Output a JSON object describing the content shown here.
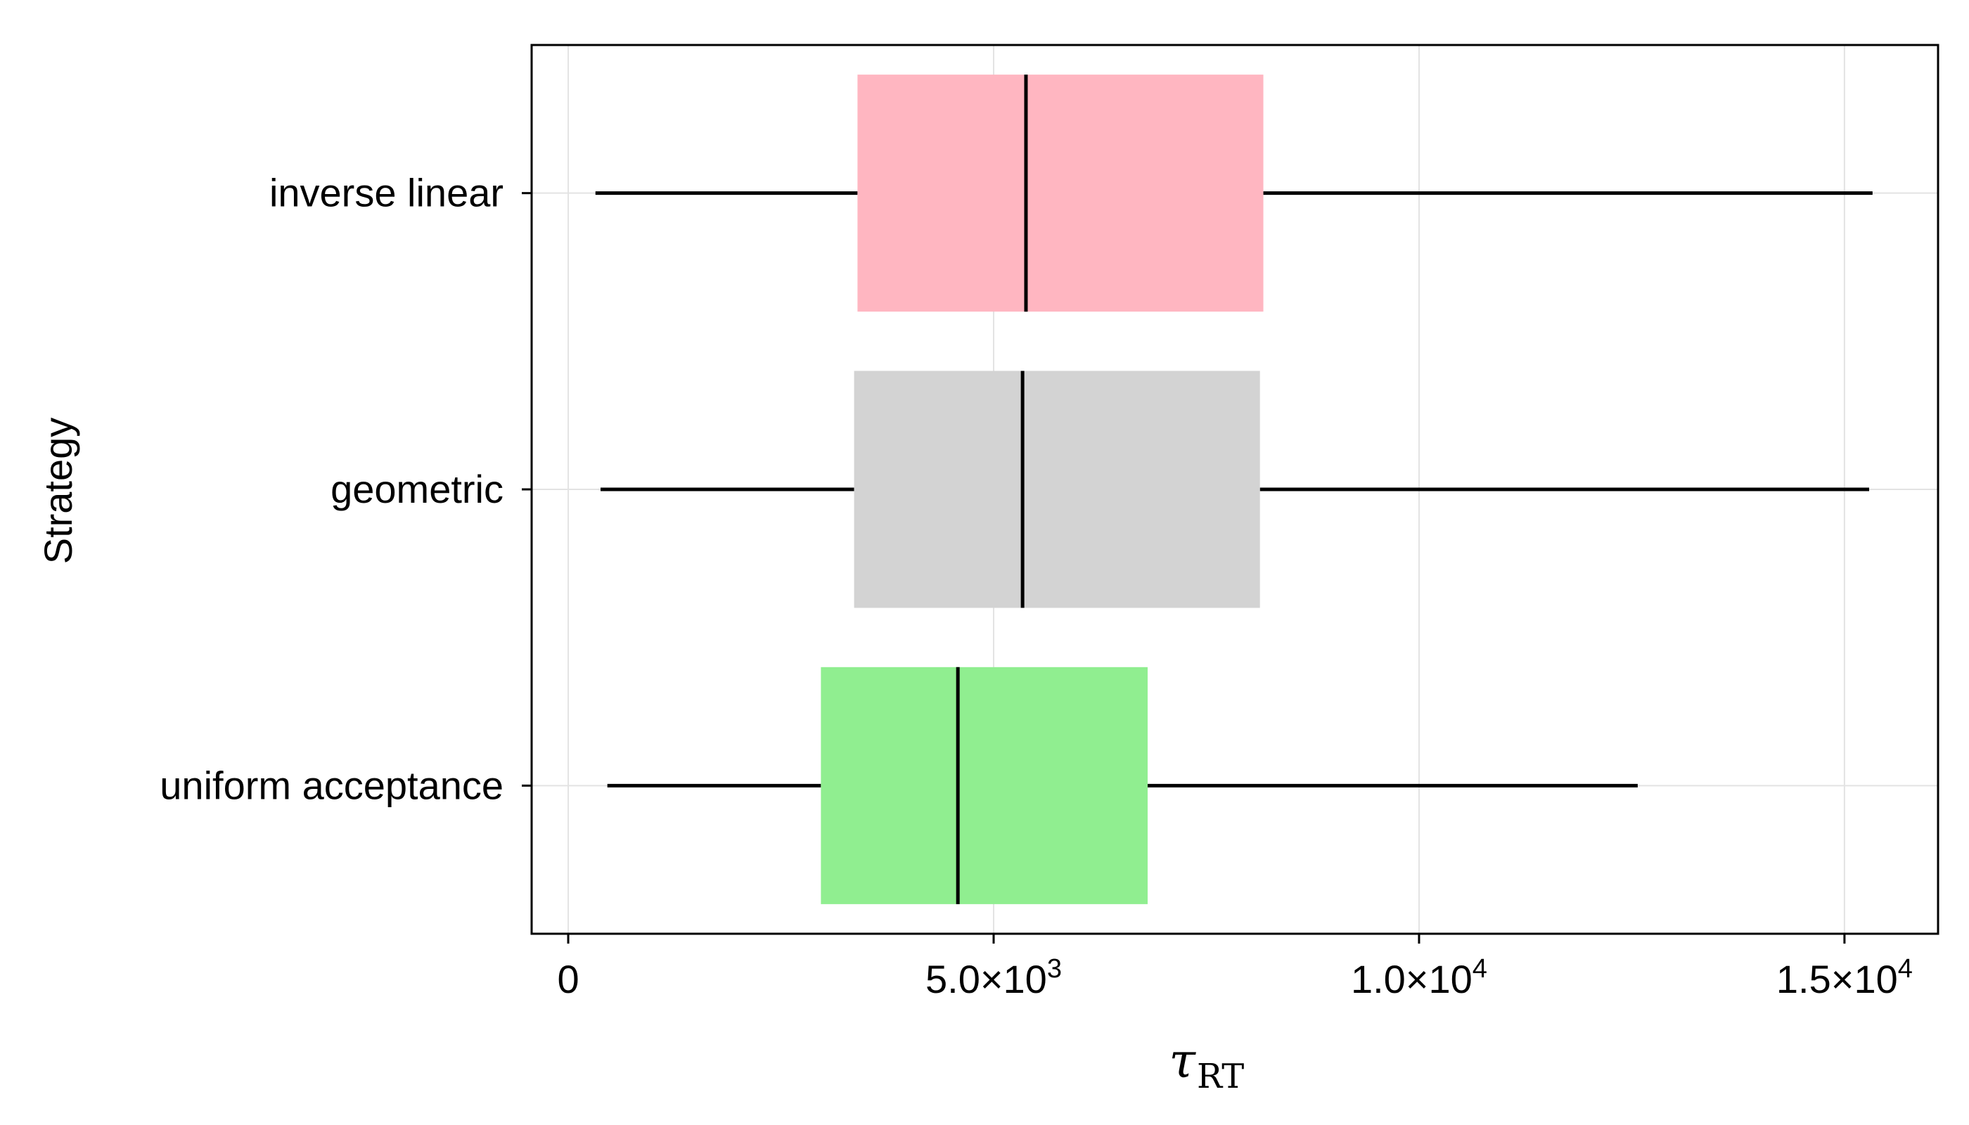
{
  "chart_data": {
    "type": "boxplot",
    "orientation": "horizontal",
    "xlabel": "τ",
    "xlabel_subscript": "RT",
    "ylabel": "Strategy",
    "xlim": [
      -430,
      16100
    ],
    "grid": true,
    "x_ticks": [
      {
        "value": 0,
        "label": "0"
      },
      {
        "value": 5000,
        "mantissa": "5.0×10",
        "exp": "3"
      },
      {
        "value": 10000,
        "mantissa": "1.0×10",
        "exp": "4"
      },
      {
        "value": 15000,
        "mantissa": "1.5×10",
        "exp": "4"
      }
    ],
    "categories": [
      "inverse linear",
      "geometric",
      "uniform acceptance"
    ],
    "series": [
      {
        "category": "inverse linear",
        "whisker_low": 320,
        "q1": 3400,
        "median": 5380,
        "q3": 8170,
        "whisker_high": 15330,
        "color": "#ffb6c1"
      },
      {
        "category": "geometric",
        "whisker_low": 380,
        "q1": 3360,
        "median": 5340,
        "q3": 8130,
        "whisker_high": 15290,
        "color": "#d3d3d3"
      },
      {
        "category": "uniform acceptance",
        "whisker_low": 460,
        "q1": 2970,
        "median": 4580,
        "q3": 6810,
        "whisker_high": 12570,
        "color": "#90ee90"
      }
    ]
  }
}
